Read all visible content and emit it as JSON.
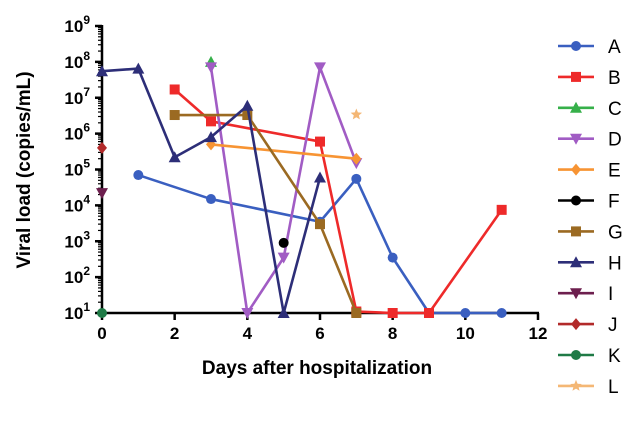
{
  "chart_data": {
    "type": "line",
    "title": "",
    "xlabel": "Days after hospitalization",
    "ylabel": "Viral load (copies/mL)",
    "xlim": [
      0,
      12
    ],
    "xticks": [
      0,
      2,
      4,
      6,
      8,
      10,
      12
    ],
    "xtick_labels": [
      "0",
      "2",
      "4",
      "6",
      "8",
      "10",
      "12"
    ],
    "ylim": [
      10,
      1000000000
    ],
    "yscale": "log",
    "yticks": [
      10,
      100,
      1000,
      10000,
      100000,
      1000000,
      10000000,
      100000000,
      1000000000
    ],
    "ytick_labels": [
      {
        "base": "10",
        "exp": "1"
      },
      {
        "base": "10",
        "exp": "2"
      },
      {
        "base": "10",
        "exp": "3"
      },
      {
        "base": "10",
        "exp": "4"
      },
      {
        "base": "10",
        "exp": "5"
      },
      {
        "base": "10",
        "exp": "6"
      },
      {
        "base": "10",
        "exp": "7"
      },
      {
        "base": "10",
        "exp": "8"
      },
      {
        "base": "10",
        "exp": "9"
      }
    ],
    "grid": false,
    "legend_position": "right",
    "series": [
      {
        "name": "A",
        "color": "#3a5fc0",
        "marker": "circle",
        "x": [
          1,
          3,
          6,
          7,
          8,
          9,
          10,
          11
        ],
        "y": [
          70000,
          15000,
          3500,
          55000,
          350,
          10,
          10,
          10
        ]
      },
      {
        "name": "B",
        "color": "#ee2a2a",
        "marker": "square",
        "x": [
          2,
          3,
          6,
          7,
          8,
          9,
          11
        ],
        "y": [
          17000000,
          2200000,
          600000,
          11,
          10,
          10,
          7500
        ]
      },
      {
        "name": "C",
        "color": "#36b04a",
        "marker": "triangle-up",
        "x": [
          3
        ],
        "y": [
          100000000
        ]
      },
      {
        "name": "D",
        "color": "#a15cc4",
        "marker": "triangle-down",
        "x": [
          3,
          4,
          5,
          6,
          7
        ],
        "y": [
          70000000,
          10,
          350,
          70000000,
          150000
        ]
      },
      {
        "name": "E",
        "color": "#f79433",
        "marker": "diamond",
        "x": [
          3,
          7
        ],
        "y": [
          500000,
          200000
        ]
      },
      {
        "name": "F",
        "color": "#000000",
        "marker": "circle",
        "x": [
          5
        ],
        "y": [
          900
        ]
      },
      {
        "name": "G",
        "color": "#9b6a22",
        "marker": "square",
        "x": [
          2,
          4,
          6,
          7
        ],
        "y": [
          3300000,
          3300000,
          3000,
          10
        ]
      },
      {
        "name": "H",
        "color": "#2d2e78",
        "marker": "triangle-up",
        "x": [
          0,
          1,
          2,
          3,
          4,
          5,
          6
        ],
        "y": [
          55000000,
          65000000,
          220000,
          800000,
          6000000,
          10,
          60000
        ]
      },
      {
        "name": "I",
        "color": "#6d1f4e",
        "marker": "triangle-down",
        "x": [
          0
        ],
        "y": [
          22000
        ]
      },
      {
        "name": "J",
        "color": "#b22a2a",
        "marker": "diamond",
        "x": [
          0
        ],
        "y": [
          400000
        ]
      },
      {
        "name": "K",
        "color": "#1f7a46",
        "marker": "circle",
        "x": [
          0
        ],
        "y": [
          10
        ]
      },
      {
        "name": "L",
        "color": "#f4b775",
        "marker": "star",
        "x": [
          7
        ],
        "y": [
          3400000
        ]
      }
    ]
  }
}
